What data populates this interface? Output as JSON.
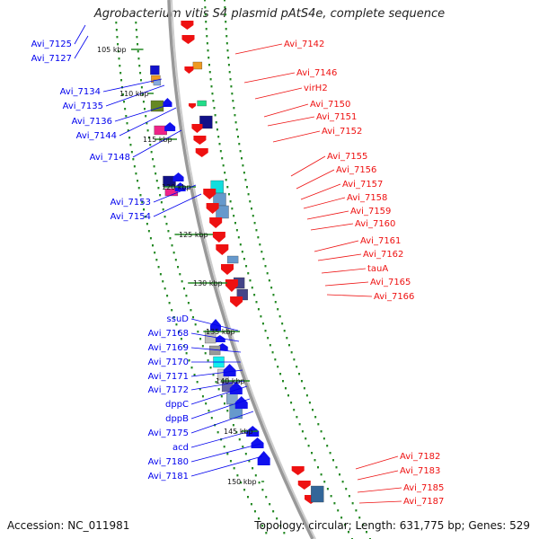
{
  "title": "Agrobacterium vitis S4 plasmid pAtS4e, complete sequence",
  "accession_text": "Accession: NC_011981",
  "topology_text": "Topology: circular; Length: 631,775 bp; Genes: 529",
  "colors": {
    "forward": "#0000ee",
    "reverse": "#ee1111",
    "backbone": "#999999",
    "ruler_dots": "#228822"
  },
  "ruler_labels": [
    "105 kbp",
    "110 kbp",
    "115 kbp",
    "120 kbp",
    "125 kbp",
    "130 kbp",
    "135 kbp",
    "140 kbp",
    "145 kbp",
    "150 kbp"
  ],
  "left_labels": [
    "Avi_7125",
    "Avi_7127",
    "Avi_7134",
    "Avi_7135",
    "Avi_7136",
    "Avi_7144",
    "Avi_7148",
    "Avi_7153",
    "Avi_7154",
    "ssuD",
    "Avi_7168",
    "Avi_7169",
    "Avi_7170",
    "Avi_7171",
    "Avi_7172",
    "dppC",
    "dppB",
    "Avi_7175",
    "acd",
    "Avi_7180",
    "Avi_7181"
  ],
  "right_labels": [
    "Avi_7142",
    "Avi_7146",
    "virH2",
    "Avi_7150",
    "Avi_7151",
    "Avi_7152",
    "Avi_7155",
    "Avi_7156",
    "Avi_7157",
    "Avi_7158",
    "Avi_7159",
    "Avi_7160",
    "Avi_7161",
    "Avi_7162",
    "tauA",
    "Avi_7165",
    "Avi_7166",
    "Avi_7182",
    "Avi_7183",
    "Avi_7185",
    "Avi_7187"
  ]
}
